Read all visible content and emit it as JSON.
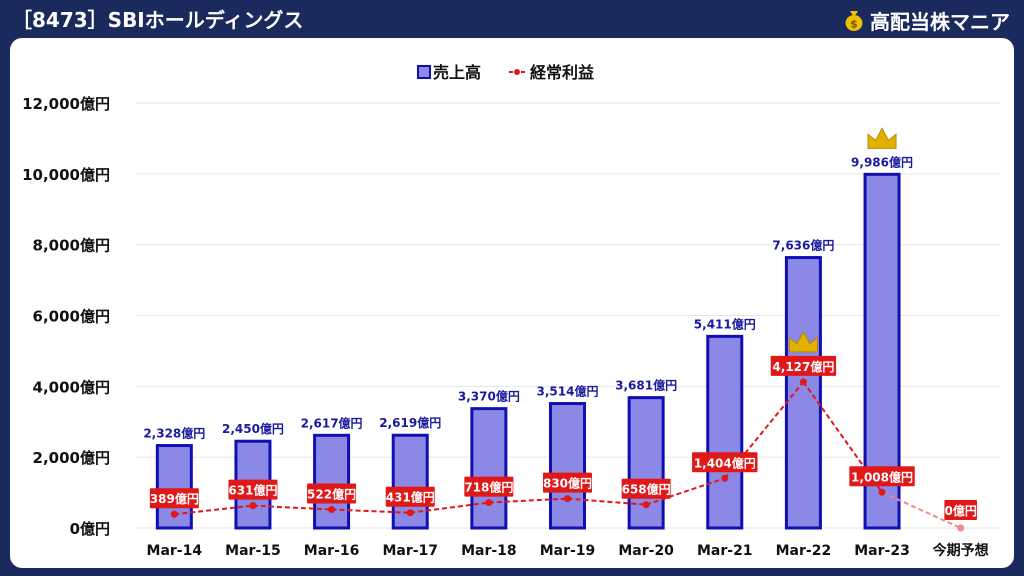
{
  "header": {
    "title": "［8473］SBIホールディングス",
    "brand": "高配当株マニア"
  },
  "icons": {
    "brand": "money-bag-icon",
    "record": "crown-icon"
  },
  "colors": {
    "frame": "#1b2a5c",
    "bar_fill": "#8c88e6",
    "bar_stroke": "#0f0fb4",
    "line": "#e01818",
    "label_bg": "#e01818",
    "crown": "#e2b100"
  },
  "chart_data": {
    "type": "bar",
    "categories": [
      "Mar-14",
      "Mar-15",
      "Mar-16",
      "Mar-17",
      "Mar-18",
      "Mar-19",
      "Mar-20",
      "Mar-21",
      "Mar-22",
      "Mar-23",
      "今期予想"
    ],
    "series": [
      {
        "name": "売上高",
        "type": "bar",
        "values": [
          2328,
          2450,
          2617,
          2619,
          3370,
          3514,
          3681,
          5411,
          7636,
          9986,
          null
        ],
        "labels": [
          "2,328億円",
          "2,450億円",
          "2,617億円",
          "2,619億円",
          "3,370億円",
          "3,514億円",
          "3,681億円",
          "5,411億円",
          "7,636億円",
          "9,986億円",
          ""
        ]
      },
      {
        "name": "経常利益",
        "type": "line",
        "values": [
          389,
          631,
          522,
          431,
          718,
          830,
          658,
          1404,
          4127,
          1008,
          0
        ],
        "labels": [
          "389億円",
          "631億円",
          "522億円",
          "431億円",
          "718億円",
          "830億円",
          "658億円",
          "1,404億円",
          "4,127億円",
          "1,008億円",
          "0億円"
        ]
      }
    ],
    "yticks": [
      "0億円",
      "2,000億円",
      "4,000億円",
      "6,000億円",
      "8,000億円",
      "10,000億円",
      "12,000億円"
    ],
    "ylim": [
      0,
      12000
    ],
    "grid": true,
    "legend": "top-center",
    "record_markers": [
      {
        "series": "売上高",
        "category": "Mar-23"
      },
      {
        "series": "経常利益",
        "category": "Mar-22"
      }
    ]
  }
}
